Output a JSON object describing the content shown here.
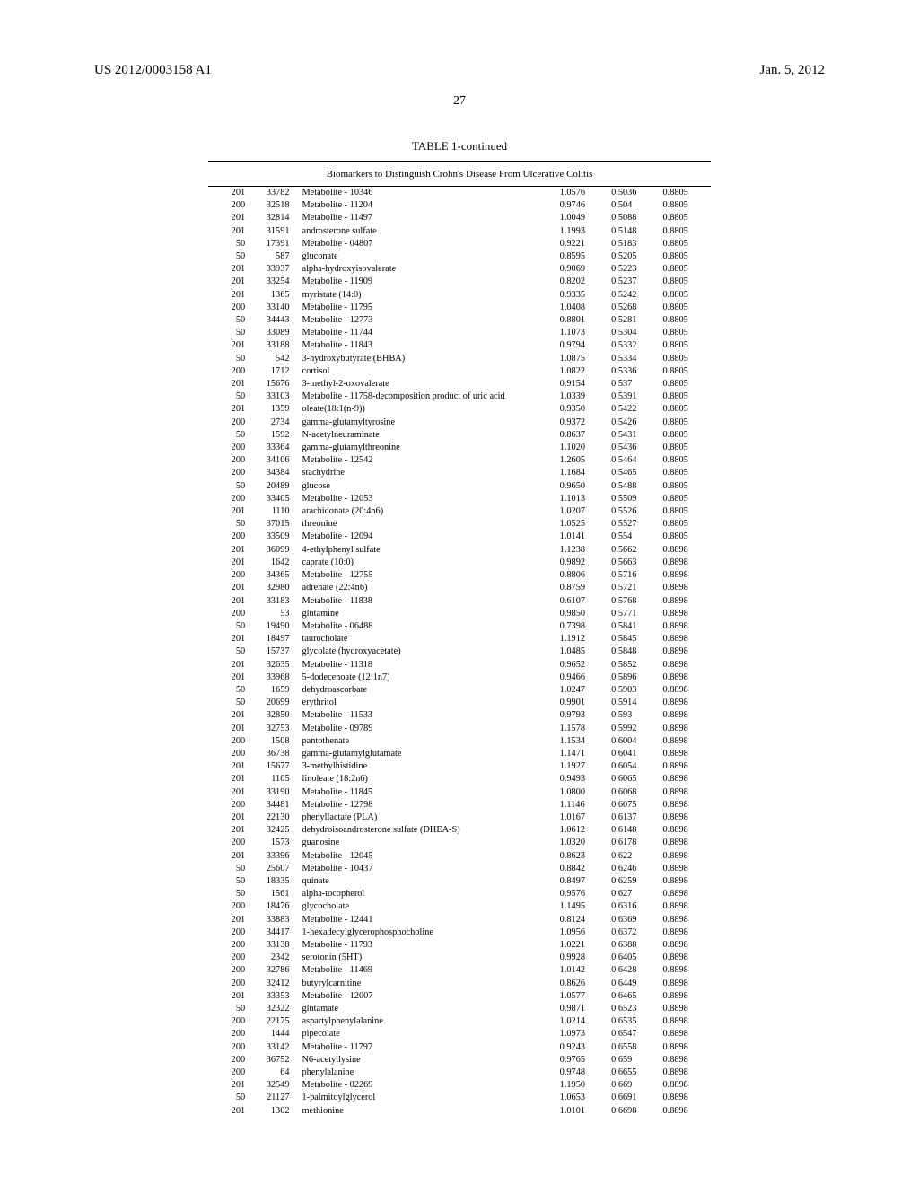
{
  "header": {
    "pub_number": "US 2012/0003158 A1",
    "pub_date": "Jan. 5, 2012",
    "page_number": "27"
  },
  "table": {
    "title": "TABLE 1-continued",
    "subtitle": "Biomarkers to Distinguish Crohn's Disease From Ulcerative Colitis",
    "rows": [
      [
        "201",
        "33782",
        "Metabolite - 10346",
        "1.0576",
        "0.5036",
        "0.8805"
      ],
      [
        "200",
        "32518",
        "Metabolite - 11204",
        "0.9746",
        "0.504",
        "0.8805"
      ],
      [
        "201",
        "32814",
        "Metabolite - 11497",
        "1.0049",
        "0.5088",
        "0.8805"
      ],
      [
        "201",
        "31591",
        "androsterone sulfate",
        "1.1993",
        "0.5148",
        "0.8805"
      ],
      [
        "50",
        "17391",
        "Metabolite - 04807",
        "0.9221",
        "0.5183",
        "0.8805"
      ],
      [
        "50",
        "587",
        "gluconate",
        "0.8595",
        "0.5205",
        "0.8805"
      ],
      [
        "201",
        "33937",
        "alpha-hydroxyisovalerate",
        "0.9069",
        "0.5223",
        "0.8805"
      ],
      [
        "201",
        "33254",
        "Metabolite - 11909",
        "0.8202",
        "0.5237",
        "0.8805"
      ],
      [
        "201",
        "1365",
        "myristate (14:0)",
        "0.9335",
        "0.5242",
        "0.8805"
      ],
      [
        "200",
        "33140",
        "Metabolite - 11795",
        "1.0408",
        "0.5268",
        "0.8805"
      ],
      [
        "50",
        "34443",
        "Metabolite - 12773",
        "0.8801",
        "0.5281",
        "0.8805"
      ],
      [
        "50",
        "33089",
        "Metabolite - 11744",
        "1.1073",
        "0.5304",
        "0.8805"
      ],
      [
        "201",
        "33188",
        "Metabolite - 11843",
        "0.9794",
        "0.5332",
        "0.8805"
      ],
      [
        "50",
        "542",
        "3-hydroxybutyrate (BHBA)",
        "1.0875",
        "0.5334",
        "0.8805"
      ],
      [
        "200",
        "1712",
        "cortisol",
        "1.0822",
        "0.5336",
        "0.8805"
      ],
      [
        "201",
        "15676",
        "3-methyl-2-oxovalerate",
        "0.9154",
        "0.537",
        "0.8805"
      ],
      [
        "50",
        "33103",
        "Metabolite - 11758-decomposition product of uric acid",
        "1.0339",
        "0.5391",
        "0.8805"
      ],
      [
        "201",
        "1359",
        "oleate(18:1(n-9))",
        "0.9350",
        "0.5422",
        "0.8805"
      ],
      [
        "200",
        "2734",
        "gamma-glutamyltyrosine",
        "0.9372",
        "0.5426",
        "0.8805"
      ],
      [
        "50",
        "1592",
        "N-acetylneuraminate",
        "0.8637",
        "0.5431",
        "0.8805"
      ],
      [
        "200",
        "33364",
        "gamma-glutamylthreonine",
        "1.1020",
        "0.5436",
        "0.8805"
      ],
      [
        "200",
        "34106",
        "Metabolite - 12542",
        "1.2605",
        "0.5464",
        "0.8805"
      ],
      [
        "200",
        "34384",
        "stachydrine",
        "1.1684",
        "0.5465",
        "0.8805"
      ],
      [
        "50",
        "20489",
        "glucose",
        "0.9650",
        "0.5488",
        "0.8805"
      ],
      [
        "200",
        "33405",
        "Metabolite - 12053",
        "1.1013",
        "0.5509",
        "0.8805"
      ],
      [
        "201",
        "1110",
        "arachidonate (20:4n6)",
        "1.0207",
        "0.5526",
        "0.8805"
      ],
      [
        "50",
        "37015",
        "threonine",
        "1.0525",
        "0.5527",
        "0.8805"
      ],
      [
        "200",
        "33509",
        "Metabolite - 12094",
        "1.0141",
        "0.554",
        "0.8805"
      ],
      [
        "201",
        "36099",
        "4-ethylphenyl sulfate",
        "1.1238",
        "0.5662",
        "0.8898"
      ],
      [
        "201",
        "1642",
        "caprate (10:0)",
        "0.9892",
        "0.5663",
        "0.8898"
      ],
      [
        "200",
        "34365",
        "Metabolite - 12755",
        "0.8806",
        "0.5716",
        "0.8898"
      ],
      [
        "201",
        "32980",
        "adrenate (22:4n6)",
        "0.8759",
        "0.5721",
        "0.8898"
      ],
      [
        "201",
        "33183",
        "Metabolite - 11838",
        "0.6107",
        "0.5768",
        "0.8898"
      ],
      [
        "200",
        "53",
        "glutamine",
        "0.9850",
        "0.5771",
        "0.8898"
      ],
      [
        "50",
        "19490",
        "Metabolite - 06488",
        "0.7398",
        "0.5841",
        "0.8898"
      ],
      [
        "201",
        "18497",
        "taurocholate",
        "1.1912",
        "0.5845",
        "0.8898"
      ],
      [
        "50",
        "15737",
        "glycolate (hydroxyacetate)",
        "1.0485",
        "0.5848",
        "0.8898"
      ],
      [
        "201",
        "32635",
        "Metabolite - 11318",
        "0.9652",
        "0.5852",
        "0.8898"
      ],
      [
        "201",
        "33968",
        "5-dodecenoate (12:1n7)",
        "0.9466",
        "0.5896",
        "0.8898"
      ],
      [
        "50",
        "1659",
        "dehydroascorbate",
        "1.0247",
        "0.5903",
        "0.8898"
      ],
      [
        "50",
        "20699",
        "erythritol",
        "0.9901",
        "0.5914",
        "0.8898"
      ],
      [
        "201",
        "32850",
        "Metabolite - 11533",
        "0.9793",
        "0.593",
        "0.8898"
      ],
      [
        "201",
        "32753",
        "Metabolite - 09789",
        "1.1578",
        "0.5992",
        "0.8898"
      ],
      [
        "200",
        "1508",
        "pantothenate",
        "1.1534",
        "0.6004",
        "0.8898"
      ],
      [
        "200",
        "36738",
        "gamma-glutamylglutamate",
        "1.1471",
        "0.6041",
        "0.8898"
      ],
      [
        "201",
        "15677",
        "3-methylhistidine",
        "1.1927",
        "0.6054",
        "0.8898"
      ],
      [
        "201",
        "1105",
        "linoleate (18:2n6)",
        "0.9493",
        "0.6065",
        "0.8898"
      ],
      [
        "201",
        "33190",
        "Metabolite - 11845",
        "1.0800",
        "0.6068",
        "0.8898"
      ],
      [
        "200",
        "34481",
        "Metabolite - 12798",
        "1.1146",
        "0.6075",
        "0.8898"
      ],
      [
        "201",
        "22130",
        "phenyllactate (PLA)",
        "1.0167",
        "0.6137",
        "0.8898"
      ],
      [
        "201",
        "32425",
        "dehydroisoandrosterone sulfate (DHEA-S)",
        "1.0612",
        "0.6148",
        "0.8898"
      ],
      [
        "200",
        "1573",
        "guanosine",
        "1.0320",
        "0.6178",
        "0.8898"
      ],
      [
        "201",
        "33396",
        "Metabolite - 12045",
        "0.8623",
        "0.622",
        "0.8898"
      ],
      [
        "50",
        "25607",
        "Metabolite - 10437",
        "0.8842",
        "0.6246",
        "0.8898"
      ],
      [
        "50",
        "18335",
        "quinate",
        "0.8497",
        "0.6259",
        "0.8898"
      ],
      [
        "50",
        "1561",
        "alpha-tocopherol",
        "0.9576",
        "0.627",
        "0.8898"
      ],
      [
        "200",
        "18476",
        "glycocholate",
        "1.1495",
        "0.6316",
        "0.8898"
      ],
      [
        "201",
        "33883",
        "Metabolite - 12441",
        "0.8124",
        "0.6369",
        "0.8898"
      ],
      [
        "200",
        "34417",
        "1-hexadecylglycerophosphocholine",
        "1.0956",
        "0.6372",
        "0.8898"
      ],
      [
        "200",
        "33138",
        "Metabolite - 11793",
        "1.0221",
        "0.6388",
        "0.8898"
      ],
      [
        "200",
        "2342",
        "serotonin (5HT)",
        "0.9928",
        "0.6405",
        "0.8898"
      ],
      [
        "200",
        "32786",
        "Metabolite - 11469",
        "1.0142",
        "0.6428",
        "0.8898"
      ],
      [
        "200",
        "32412",
        "butyrylcarnitine",
        "0.8626",
        "0.6449",
        "0.8898"
      ],
      [
        "201",
        "33353",
        "Metabolite - 12007",
        "1.0577",
        "0.6465",
        "0.8898"
      ],
      [
        "50",
        "32322",
        "glutamate",
        "0.9871",
        "0.6523",
        "0.8898"
      ],
      [
        "200",
        "22175",
        "aspartylphenylalanine",
        "1.0214",
        "0.6535",
        "0.8898"
      ],
      [
        "200",
        "1444",
        "pipecolate",
        "1.0973",
        "0.6547",
        "0.8898"
      ],
      [
        "200",
        "33142",
        "Metabolite - 11797",
        "0.9243",
        "0.6558",
        "0.8898"
      ],
      [
        "200",
        "36752",
        "N6-acetyllysine",
        "0.9765",
        "0.659",
        "0.8898"
      ],
      [
        "200",
        "64",
        "phenylalanine",
        "0.9748",
        "0.6655",
        "0.8898"
      ],
      [
        "201",
        "32549",
        "Metabolite - 02269",
        "1.1950",
        "0.669",
        "0.8898"
      ],
      [
        "50",
        "21127",
        "1-palmitoylglycerol",
        "1.0653",
        "0.6691",
        "0.8898"
      ],
      [
        "201",
        "1302",
        "methionine",
        "1.0101",
        "0.6698",
        "0.8898"
      ]
    ]
  }
}
